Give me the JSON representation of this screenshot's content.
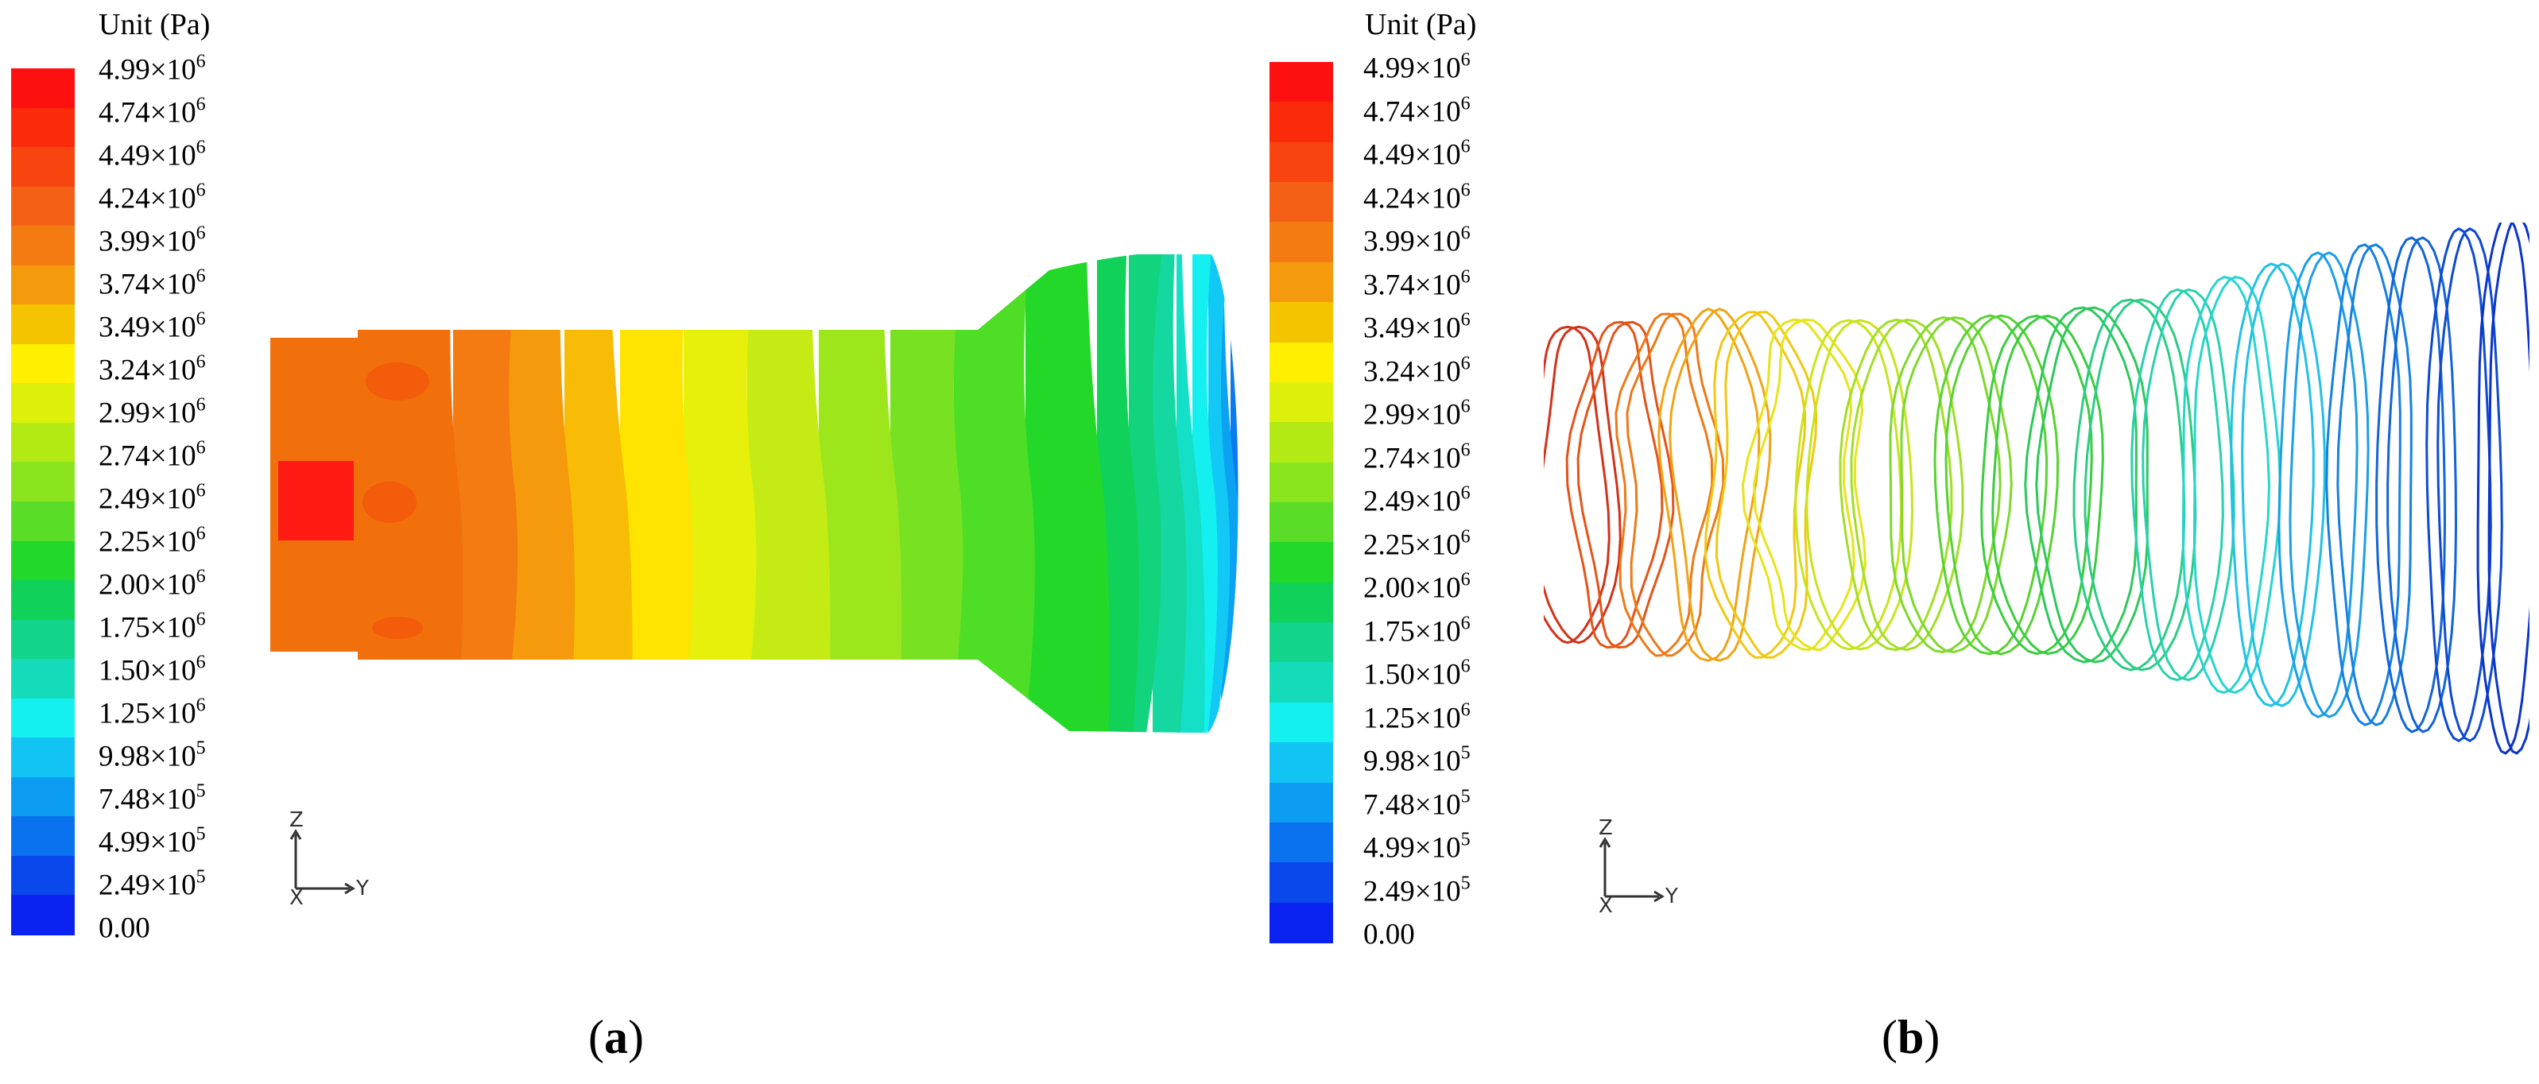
{
  "panels": [
    {
      "caption_open": "(",
      "caption_letter": "a",
      "caption_close": ")",
      "legend": {
        "unit": "Unit (Pa)",
        "ticks": [
          {
            "mantissa": "4.99×10",
            "exp": "6"
          },
          {
            "mantissa": "4.74×10",
            "exp": "6"
          },
          {
            "mantissa": "4.49×10",
            "exp": "6"
          },
          {
            "mantissa": "4.24×10",
            "exp": "6"
          },
          {
            "mantissa": "3.99×10",
            "exp": "6"
          },
          {
            "mantissa": "3.74×10",
            "exp": "6"
          },
          {
            "mantissa": "3.49×10",
            "exp": "6"
          },
          {
            "mantissa": "3.24×10",
            "exp": "6"
          },
          {
            "mantissa": "2.99×10",
            "exp": "6"
          },
          {
            "mantissa": "2.74×10",
            "exp": "6"
          },
          {
            "mantissa": "2.49×10",
            "exp": "6"
          },
          {
            "mantissa": "2.25×10",
            "exp": "6"
          },
          {
            "mantissa": "2.00×10",
            "exp": "6"
          },
          {
            "mantissa": "1.75×10",
            "exp": "6"
          },
          {
            "mantissa": "1.50×10",
            "exp": "6"
          },
          {
            "mantissa": "1.25×10",
            "exp": "6"
          },
          {
            "mantissa": "9.98×10",
            "exp": "5"
          },
          {
            "mantissa": "7.48×10",
            "exp": "5"
          },
          {
            "mantissa": "4.99×10",
            "exp": "5"
          },
          {
            "mantissa": "2.49×10",
            "exp": "5"
          },
          {
            "mantissa": "0.00",
            "exp": ""
          }
        ]
      },
      "axes": {
        "vertical": "Z",
        "horizontal": "Y",
        "origin": "X"
      }
    },
    {
      "caption_open": "(",
      "caption_letter": "b",
      "caption_close": ")",
      "legend": {
        "unit": "Unit (Pa)",
        "ticks": [
          {
            "mantissa": "4.99×10",
            "exp": "6"
          },
          {
            "mantissa": "4.74×10",
            "exp": "6"
          },
          {
            "mantissa": "4.49×10",
            "exp": "6"
          },
          {
            "mantissa": "4.24×10",
            "exp": "6"
          },
          {
            "mantissa": "3.99×10",
            "exp": "6"
          },
          {
            "mantissa": "3.74×10",
            "exp": "6"
          },
          {
            "mantissa": "3.49×10",
            "exp": "6"
          },
          {
            "mantissa": "3.24×10",
            "exp": "6"
          },
          {
            "mantissa": "2.99×10",
            "exp": "6"
          },
          {
            "mantissa": "2.74×10",
            "exp": "6"
          },
          {
            "mantissa": "2.49×10",
            "exp": "6"
          },
          {
            "mantissa": "2.25×10",
            "exp": "6"
          },
          {
            "mantissa": "2.00×10",
            "exp": "6"
          },
          {
            "mantissa": "1.75×10",
            "exp": "6"
          },
          {
            "mantissa": "1.50×10",
            "exp": "6"
          },
          {
            "mantissa": "1.25×10",
            "exp": "6"
          },
          {
            "mantissa": "9.98×10",
            "exp": "5"
          },
          {
            "mantissa": "7.48×10",
            "exp": "5"
          },
          {
            "mantissa": "4.99×10",
            "exp": "5"
          },
          {
            "mantissa": "2.49×10",
            "exp": "5"
          },
          {
            "mantissa": "0.00",
            "exp": ""
          }
        ]
      },
      "axes": {
        "vertical": "Z",
        "horizontal": "Y",
        "origin": "X"
      }
    }
  ],
  "colormap": [
    "#ff1010",
    "#fb2a0a",
    "#f84510",
    "#f46016",
    "#f47a12",
    "#f59a0c",
    "#f5c400",
    "#fff000",
    "#dcf00a",
    "#b4ea14",
    "#8ae41e",
    "#5add26",
    "#22d82a",
    "#10d258",
    "#12d48a",
    "#14dcbb",
    "#14f0f0",
    "#12c4f4",
    "#0c9cf2",
    "#0a72ee",
    "#0a48ec",
    "#0a22f0"
  ]
}
